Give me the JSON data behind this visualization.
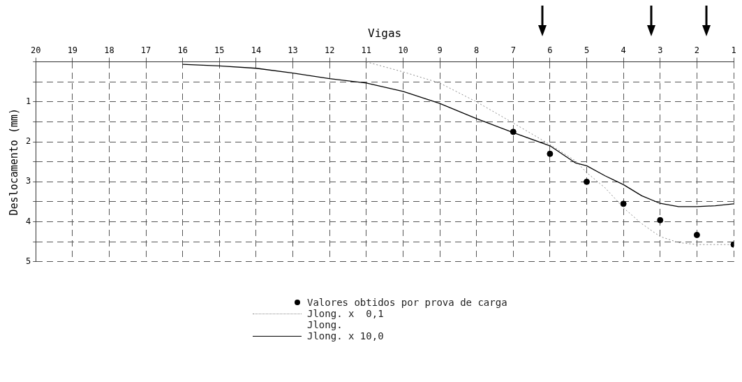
{
  "chart_data": {
    "type": "line",
    "xlabel": "Vigas",
    "ylabel": "Deslocamento (mm)",
    "xlim": [
      20,
      1
    ],
    "xticks": [
      20,
      19,
      18,
      17,
      16,
      15,
      14,
      13,
      12,
      11,
      10,
      9,
      8,
      7,
      6,
      5,
      4,
      3,
      2,
      1
    ],
    "ylim": [
      5,
      0
    ],
    "yticks": [
      {
        "value": 0,
        "label": null
      },
      {
        "value": 0.5,
        "label": null
      },
      1,
      {
        "value": 1.5,
        "label": null
      },
      2,
      {
        "value": 2.5,
        "label": null
      },
      3,
      {
        "value": 3.5,
        "label": null
      },
      4,
      {
        "value": 4.5,
        "label": null
      },
      5
    ],
    "grid": true,
    "legend": "bottom",
    "annotations": [
      "Jlong."
    ],
    "series": [
      {
        "name": "Valores obtidos por prova de carga",
        "type": "scatter",
        "marker": "circle",
        "color": "#000000",
        "x": [
          7,
          6,
          5,
          4,
          3,
          2,
          1
        ],
        "values": [
          1.75,
          2.3,
          3.0,
          3.55,
          3.96,
          4.33,
          4.57
        ]
      },
      {
        "name": "Jlong. x  0,1",
        "type": "line",
        "marker": "none",
        "line_style": "dotted",
        "color": "#8c8c8c",
        "x": [
          11,
          10,
          9,
          8,
          7,
          6,
          5.3,
          5,
          4.5,
          4,
          3.5,
          3,
          2.5,
          2,
          1
        ],
        "values": [
          0,
          0.25,
          0.53,
          1.0,
          1.53,
          2.07,
          2.48,
          2.77,
          3.15,
          3.65,
          4.05,
          4.37,
          4.52,
          4.57,
          4.57
        ]
      },
      {
        "name": "Jlong. x 10,0",
        "type": "line",
        "marker": "none",
        "line_style": "solid",
        "color": "#000000",
        "x": [
          16,
          15,
          14,
          13,
          12,
          11,
          10,
          9,
          8,
          7,
          6,
          5.3,
          5,
          4.5,
          4,
          3.5,
          3,
          2.5,
          2,
          1.5,
          1
        ],
        "values": [
          0.06,
          0.1,
          0.16,
          0.28,
          0.42,
          0.53,
          0.74,
          1.04,
          1.42,
          1.77,
          2.1,
          2.53,
          2.6,
          2.85,
          3.07,
          3.35,
          3.54,
          3.62,
          3.62,
          3.6,
          3.55
        ]
      }
    ]
  }
}
